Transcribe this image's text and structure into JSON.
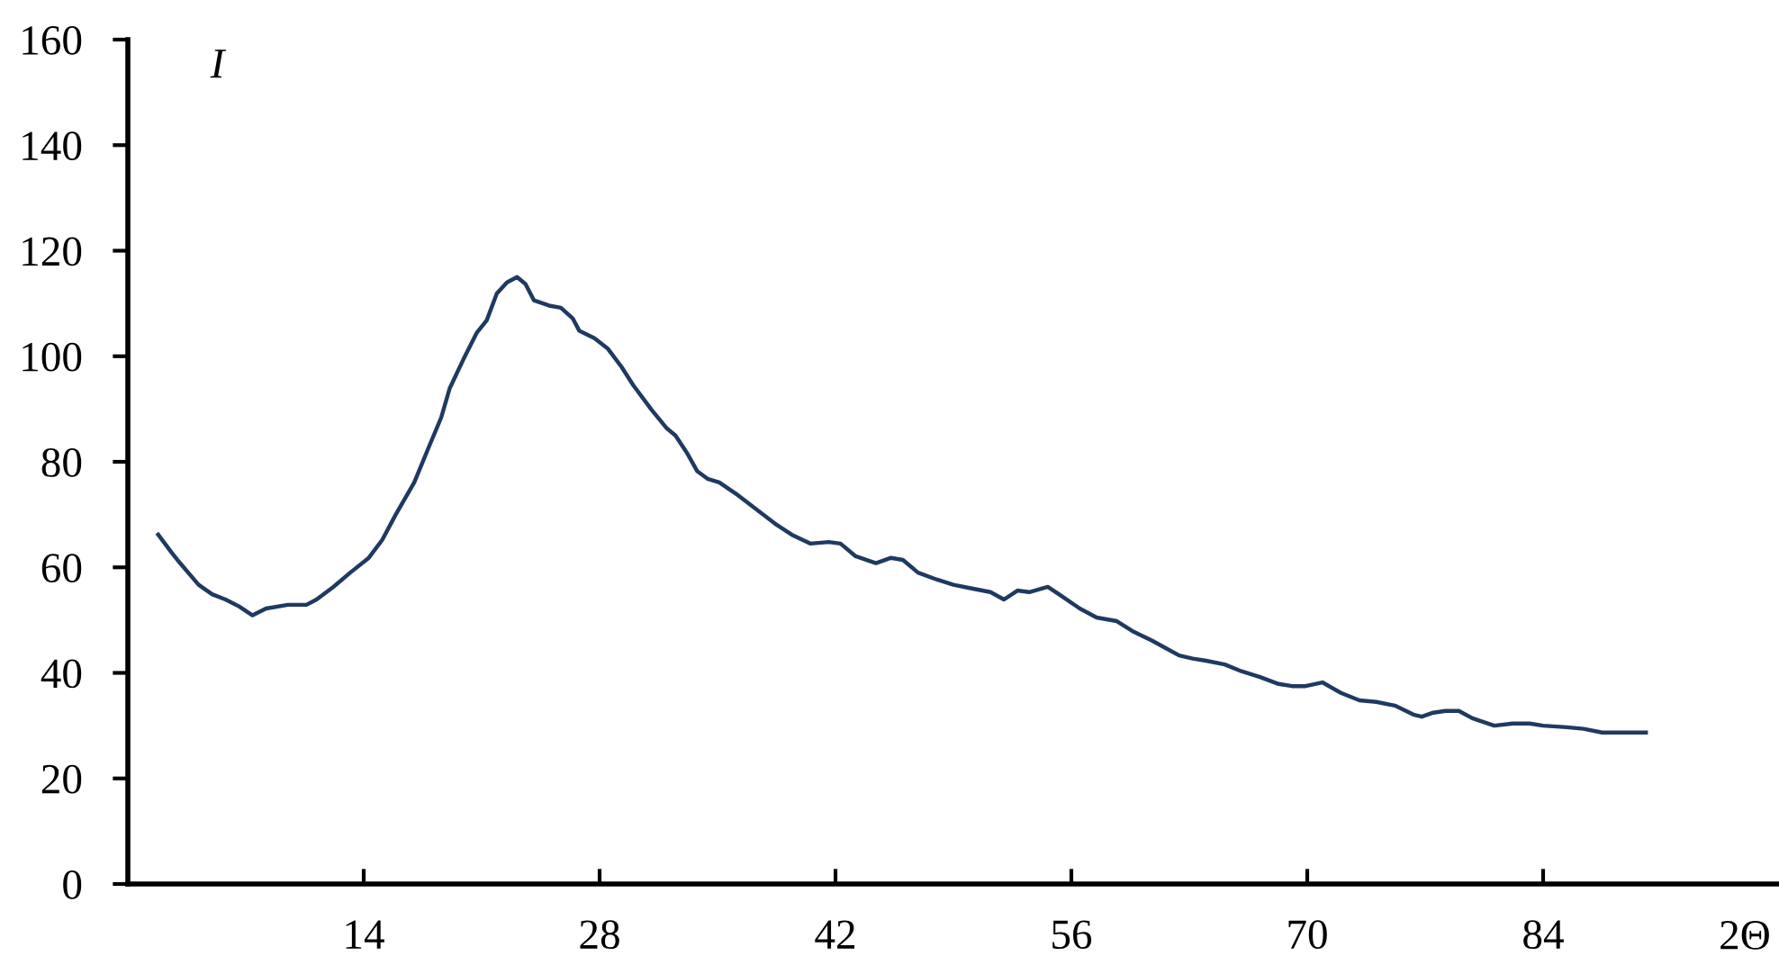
{
  "chart_data": {
    "type": "line",
    "ylabel": "I",
    "xlabel": "2Θ",
    "xlim": [
      0,
      98
    ],
    "xticks": [
      14,
      28,
      42,
      56,
      70,
      84
    ],
    "ylim": [
      0,
      160
    ],
    "yticks": [
      0,
      20,
      40,
      60,
      80,
      100,
      120,
      140,
      160
    ],
    "grid": false,
    "legend": false,
    "marker": "none",
    "line_style": "solid",
    "series": [
      {
        "color": "#1f3a60",
        "x": [
          1.8,
          2.6,
          3.1,
          4.2,
          5.0,
          5.8,
          6.6,
          7.4,
          8.2,
          9.5,
          10.6,
          11.2,
          12.2,
          13.2,
          14.3,
          15.1,
          15.9,
          17.0,
          17.8,
          18.6,
          19.1,
          19.9,
          20.7,
          21.3,
          21.9,
          22.5,
          23.1,
          23.6,
          24.1,
          25.0,
          25.7,
          26.4,
          26.8,
          27.7,
          28.5,
          29.3,
          30.0,
          31.1,
          32.0,
          32.5,
          33.2,
          33.8,
          34.4,
          35.1,
          36.2,
          37.3,
          38.4,
          39.4,
          40.5,
          41.6,
          42.3,
          43.2,
          44.4,
          45.3,
          46.0,
          46.9,
          48.0,
          49.0,
          50.1,
          51.2,
          52.0,
          52.8,
          53.5,
          54.6,
          55.4,
          56.5,
          57.5,
          58.7,
          59.7,
          60.8,
          61.6,
          62.4,
          63.2,
          64.0,
          65.1,
          66.1,
          67.2,
          68.3,
          69.1,
          69.9,
          70.9,
          72.0,
          73.1,
          74.1,
          75.2,
          76.3,
          76.8,
          77.4,
          78.2,
          79.0,
          79.8,
          81.1,
          82.2,
          83.2,
          84.0,
          85.4,
          86.4,
          87.5,
          88.6,
          90.1
        ],
        "values": [
          66.2,
          62.8,
          60.8,
          56.7,
          54.9,
          53.9,
          52.6,
          50.9,
          52.2,
          52.9,
          52.9,
          53.9,
          56.3,
          59.0,
          61.8,
          65.2,
          70.0,
          76.1,
          82.3,
          88.4,
          93.9,
          99.3,
          104.4,
          106.8,
          111.9,
          114.0,
          115.0,
          113.7,
          110.6,
          109.6,
          109.2,
          107.2,
          104.8,
          103.4,
          101.4,
          98.0,
          94.5,
          89.8,
          86.3,
          85.0,
          81.6,
          78.2,
          76.8,
          76.1,
          73.7,
          71.0,
          68.3,
          66.2,
          64.5,
          64.8,
          64.5,
          62.1,
          60.8,
          61.8,
          61.4,
          59.0,
          57.7,
          56.7,
          56.0,
          55.3,
          53.9,
          55.6,
          55.3,
          56.3,
          54.6,
          52.2,
          50.5,
          49.8,
          47.8,
          46.1,
          44.7,
          43.3,
          42.7,
          42.3,
          41.6,
          40.3,
          39.2,
          37.9,
          37.5,
          37.5,
          38.2,
          36.2,
          34.8,
          34.5,
          33.8,
          32.1,
          31.7,
          32.4,
          32.8,
          32.8,
          31.4,
          30.0,
          30.4,
          30.4,
          30.0,
          29.7,
          29.4,
          28.7,
          28.7,
          28.7
        ]
      }
    ]
  }
}
